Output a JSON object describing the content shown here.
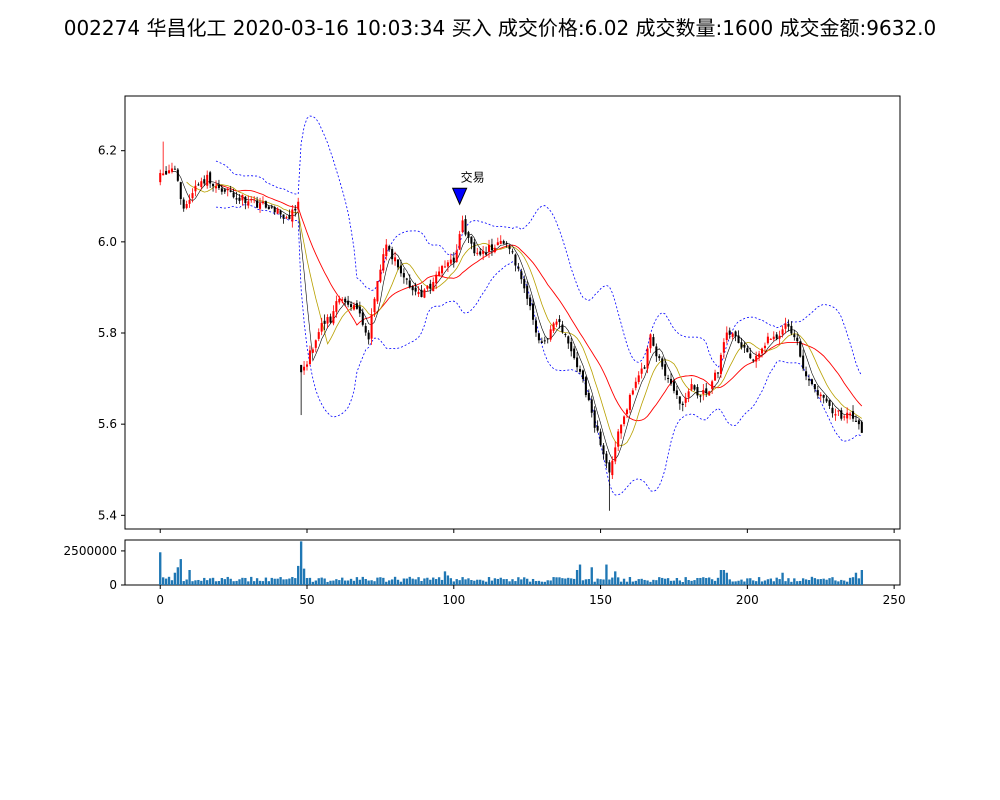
{
  "title": "002274 华昌化工 2020-03-16 10:03:34 买入 成交价格:6.02 成交数量:1600 成交金额:9632.0",
  "annotation_label": "交易",
  "colors": {
    "up": "#ff0000",
    "down": "#000000",
    "ma_short": "#000000",
    "ma_mid": "#b8a000",
    "ma_long": "#ff0000",
    "boll": "#0000ff",
    "volume": "#1f77b4",
    "marker": "#0000ff"
  },
  "chart_data": [
    {
      "type": "candlestick",
      "name": "price",
      "xlim": [
        -12,
        252
      ],
      "ylim": [
        5.37,
        6.32
      ],
      "yticks": [
        "5.4",
        "5.6",
        "5.8",
        "6.0",
        "6.2"
      ],
      "ytick_values": [
        5.4,
        5.6,
        5.8,
        6.0,
        6.2
      ],
      "grid": false,
      "close_anchors": [
        [
          0,
          6.16
        ],
        [
          5,
          6.15
        ],
        [
          8,
          6.08
        ],
        [
          12,
          6.12
        ],
        [
          16,
          6.14
        ],
        [
          20,
          6.12
        ],
        [
          25,
          6.1
        ],
        [
          30,
          6.09
        ],
        [
          35,
          6.08
        ],
        [
          40,
          6.07
        ],
        [
          44,
          6.05
        ],
        [
          47,
          6.09
        ],
        [
          48,
          5.71
        ],
        [
          52,
          5.77
        ],
        [
          55,
          5.82
        ],
        [
          58,
          5.83
        ],
        [
          61,
          5.88
        ],
        [
          65,
          5.86
        ],
        [
          68,
          5.84
        ],
        [
          71,
          5.79
        ],
        [
          74,
          5.92
        ],
        [
          77,
          5.99
        ],
        [
          80,
          5.96
        ],
        [
          83,
          5.92
        ],
        [
          86,
          5.89
        ],
        [
          89,
          5.88
        ],
        [
          93,
          5.91
        ],
        [
          96,
          5.94
        ],
        [
          100,
          5.96
        ],
        [
          103,
          6.04
        ],
        [
          106,
          5.99
        ],
        [
          109,
          5.97
        ],
        [
          113,
          5.99
        ],
        [
          117,
          6.0
        ],
        [
          120,
          5.97
        ],
        [
          124,
          5.9
        ],
        [
          128,
          5.8
        ],
        [
          131,
          5.78
        ],
        [
          135,
          5.83
        ],
        [
          138,
          5.79
        ],
        [
          141,
          5.74
        ],
        [
          144,
          5.7
        ],
        [
          147,
          5.62
        ],
        [
          150,
          5.56
        ],
        [
          153,
          5.49
        ],
        [
          156,
          5.58
        ],
        [
          159,
          5.64
        ],
        [
          162,
          5.69
        ],
        [
          165,
          5.73
        ],
        [
          167,
          5.79
        ],
        [
          169,
          5.75
        ],
        [
          172,
          5.71
        ],
        [
          175,
          5.68
        ],
        [
          178,
          5.64
        ],
        [
          181,
          5.68
        ],
        [
          184,
          5.66
        ],
        [
          187,
          5.68
        ],
        [
          190,
          5.72
        ],
        [
          193,
          5.81
        ],
        [
          196,
          5.79
        ],
        [
          199,
          5.76
        ],
        [
          202,
          5.74
        ],
        [
          205,
          5.77
        ],
        [
          208,
          5.79
        ],
        [
          211,
          5.8
        ],
        [
          214,
          5.82
        ],
        [
          217,
          5.78
        ],
        [
          220,
          5.7
        ],
        [
          223,
          5.67
        ],
        [
          226,
          5.65
        ],
        [
          229,
          5.63
        ],
        [
          232,
          5.62
        ],
        [
          235,
          5.63
        ],
        [
          239,
          5.59
        ]
      ],
      "ma_short_period": 5,
      "ma_mid_period": 10,
      "ma_long_period": 20,
      "boll_period": 20,
      "boll_k": 2,
      "trade_marker": {
        "x": 102,
        "y": 6.1,
        "label": "交易"
      }
    },
    {
      "type": "bar",
      "name": "volume",
      "xlim": [
        -12,
        252
      ],
      "ylim": [
        0,
        3300000
      ],
      "yticks": [
        "0",
        "2500000"
      ],
      "ytick_values": [
        0,
        2500000
      ],
      "xticks": [
        "0",
        "50",
        "100",
        "150",
        "200",
        "250"
      ],
      "xtick_values": [
        0,
        50,
        100,
        150,
        200,
        250
      ],
      "highlights": [
        [
          0,
          2400000
        ],
        [
          3,
          600000
        ],
        [
          5,
          900000
        ],
        [
          6,
          1300000
        ],
        [
          7,
          1900000
        ],
        [
          10,
          1100000
        ],
        [
          47,
          1400000
        ],
        [
          48,
          3200000
        ],
        [
          49,
          1200000
        ],
        [
          97,
          1000000
        ],
        [
          98,
          700000
        ],
        [
          142,
          1100000
        ],
        [
          143,
          1500000
        ],
        [
          147,
          1300000
        ],
        [
          152,
          1500000
        ],
        [
          155,
          1000000
        ],
        [
          191,
          1100000
        ],
        [
          192,
          1100000
        ],
        [
          193,
          900000
        ],
        [
          212,
          900000
        ],
        [
          222,
          600000
        ],
        [
          237,
          900000
        ],
        [
          239,
          1100000
        ]
      ]
    }
  ]
}
